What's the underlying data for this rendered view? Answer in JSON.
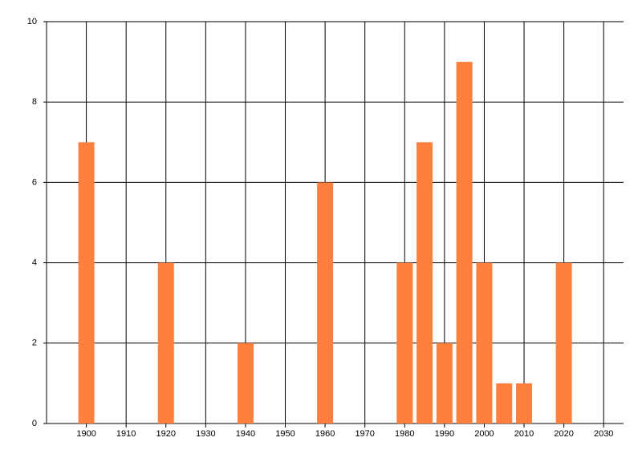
{
  "chart_data": {
    "type": "bar",
    "x": [
      1900,
      1920,
      1940,
      1960,
      1980,
      1985,
      1990,
      1995,
      2000,
      2005,
      2010,
      2020
    ],
    "values": [
      7,
      4,
      2,
      6,
      4,
      7,
      2,
      9,
      4,
      1,
      1,
      4
    ],
    "color": "#ff7f3f",
    "xlim": [
      1890,
      2035
    ],
    "xticks": [
      1900,
      1910,
      1920,
      1930,
      1940,
      1950,
      1960,
      1970,
      1980,
      1990,
      2000,
      2010,
      2020,
      2030
    ],
    "ylim": [
      0,
      10
    ],
    "yticks": [
      0,
      2,
      4,
      6,
      8,
      10
    ],
    "grid": true
  }
}
